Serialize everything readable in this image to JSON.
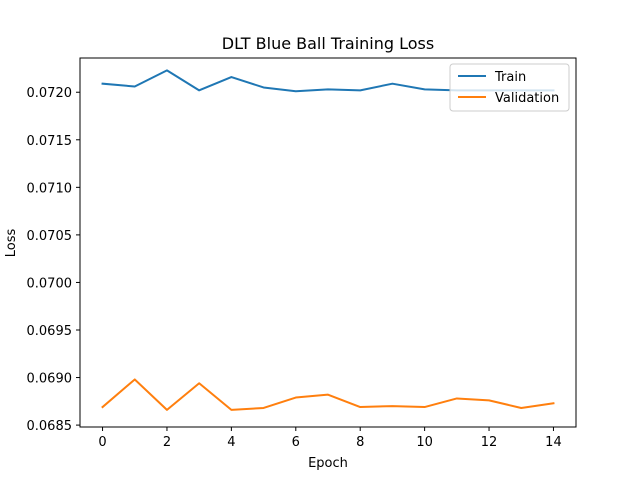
{
  "chart_data": {
    "type": "line",
    "title": "DLT Blue Ball Training Loss",
    "xlabel": "Epoch",
    "ylabel": "Loss",
    "x": [
      0,
      1,
      2,
      3,
      4,
      5,
      6,
      7,
      8,
      9,
      10,
      11,
      12,
      13,
      14
    ],
    "xticks": [
      0,
      2,
      4,
      6,
      8,
      10,
      12,
      14
    ],
    "xtick_labels": [
      "0",
      "2",
      "4",
      "6",
      "8",
      "10",
      "12",
      "14"
    ],
    "yticks": [
      0.0685,
      0.069,
      0.0695,
      0.07,
      0.0705,
      0.071,
      0.0715,
      0.072
    ],
    "ytick_labels": [
      "0.0685",
      "0.0690",
      "0.0695",
      "0.0700",
      "0.0705",
      "0.0710",
      "0.0715",
      "0.0720"
    ],
    "xlim": [
      -0.7,
      14.7
    ],
    "ylim": [
      0.06848,
      0.07236
    ],
    "grid": false,
    "legend_position": "top-right",
    "series": [
      {
        "name": "Train",
        "color": "#1f77b4",
        "values": [
          0.07209,
          0.07206,
          0.07223,
          0.07202,
          0.07216,
          0.07205,
          0.07201,
          0.07203,
          0.07202,
          0.07209,
          0.07203,
          0.07202,
          0.07202,
          0.07202,
          0.07202
        ]
      },
      {
        "name": "Validation",
        "color": "#ff7f0e",
        "values": [
          0.06869,
          0.06898,
          0.06866,
          0.06894,
          0.06866,
          0.06868,
          0.06879,
          0.06882,
          0.06869,
          0.0687,
          0.06869,
          0.06878,
          0.06876,
          0.06868,
          0.06873
        ]
      }
    ]
  }
}
